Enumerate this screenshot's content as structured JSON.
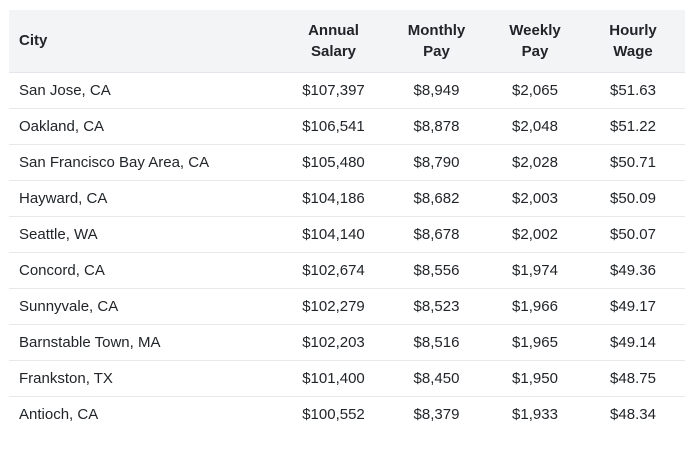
{
  "table": {
    "headers": {
      "city": "City",
      "annual": [
        "Annual",
        "Salary"
      ],
      "monthly": [
        "Monthly",
        "Pay"
      ],
      "weekly": [
        "Weekly",
        "Pay"
      ],
      "hourly": [
        "Hourly",
        "Wage"
      ]
    },
    "rows": [
      {
        "city": "San Jose, CA",
        "annual": "$107,397",
        "monthly": "$8,949",
        "weekly": "$2,065",
        "hourly": "$51.63"
      },
      {
        "city": "Oakland, CA",
        "annual": "$106,541",
        "monthly": "$8,878",
        "weekly": "$2,048",
        "hourly": "$51.22"
      },
      {
        "city": "San Francisco Bay Area, CA",
        "annual": "$105,480",
        "monthly": "$8,790",
        "weekly": "$2,028",
        "hourly": "$50.71"
      },
      {
        "city": "Hayward, CA",
        "annual": "$104,186",
        "monthly": "$8,682",
        "weekly": "$2,003",
        "hourly": "$50.09"
      },
      {
        "city": "Seattle, WA",
        "annual": "$104,140",
        "monthly": "$8,678",
        "weekly": "$2,002",
        "hourly": "$50.07"
      },
      {
        "city": "Concord, CA",
        "annual": "$102,674",
        "monthly": "$8,556",
        "weekly": "$1,974",
        "hourly": "$49.36"
      },
      {
        "city": "Sunnyvale, CA",
        "annual": "$102,279",
        "monthly": "$8,523",
        "weekly": "$1,966",
        "hourly": "$49.17"
      },
      {
        "city": "Barnstable Town, MA",
        "annual": "$102,203",
        "monthly": "$8,516",
        "weekly": "$1,965",
        "hourly": "$49.14"
      },
      {
        "city": "Frankston, TX",
        "annual": "$101,400",
        "monthly": "$8,450",
        "weekly": "$1,950",
        "hourly": "$48.75"
      },
      {
        "city": "Antioch, CA",
        "annual": "$100,552",
        "monthly": "$8,379",
        "weekly": "$1,933",
        "hourly": "$48.34"
      }
    ]
  },
  "colors": {
    "header_background": "#f3f4f6",
    "row_divider": "#e6e8eb",
    "text": "#212529"
  }
}
